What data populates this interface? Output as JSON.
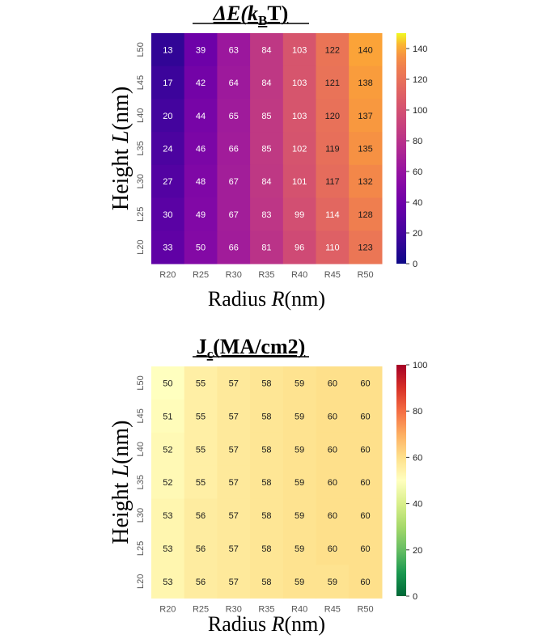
{
  "chart_data": [
    {
      "type": "heatmap",
      "id": "energy",
      "title_prefix": "ΔE(k",
      "title_sub": "B",
      "title_suffix": "T)",
      "xlabel_prefix": "Radius ",
      "xlabel_var": "R",
      "xlabel_unit": "(nm)",
      "ylabel_prefix": "Height ",
      "ylabel_var": "L",
      "ylabel_unit": "(nm)",
      "x_categories": [
        "R20",
        "R25",
        "R30",
        "R35",
        "R40",
        "R45",
        "R50"
      ],
      "y_categories": [
        "L50",
        "L45",
        "L40",
        "L35",
        "L30",
        "L25",
        "L20"
      ],
      "values": [
        [
          13,
          39,
          63,
          84,
          103,
          122,
          140
        ],
        [
          17,
          42,
          64,
          84,
          103,
          121,
          138
        ],
        [
          20,
          44,
          65,
          85,
          103,
          120,
          137
        ],
        [
          24,
          46,
          66,
          85,
          102,
          119,
          135
        ],
        [
          27,
          48,
          67,
          84,
          101,
          117,
          132
        ],
        [
          30,
          49,
          67,
          83,
          99,
          114,
          128
        ],
        [
          33,
          50,
          66,
          81,
          96,
          110,
          123
        ]
      ],
      "colormap": "plasma",
      "vmin": 0,
      "vmax": 150,
      "colorbar_ticks": [
        0,
        20,
        40,
        60,
        80,
        100,
        120,
        140
      ]
    },
    {
      "type": "heatmap",
      "id": "current",
      "title_prefix": "J",
      "title_sub": "c",
      "title_suffix": "(MA/cm2)",
      "xlabel_prefix": "Radius ",
      "xlabel_var": "R",
      "xlabel_unit": "(nm)",
      "ylabel_prefix": "Height ",
      "ylabel_var": "L",
      "ylabel_unit": "(nm)",
      "x_categories": [
        "R20",
        "R25",
        "R30",
        "R35",
        "R40",
        "R45",
        "R50"
      ],
      "y_categories": [
        "L50",
        "L45",
        "L40",
        "L35",
        "L30",
        "L25",
        "L20"
      ],
      "values": [
        [
          50,
          55,
          57,
          58,
          59,
          60,
          60
        ],
        [
          51,
          55,
          57,
          58,
          59,
          60,
          60
        ],
        [
          52,
          55,
          57,
          58,
          59,
          60,
          60
        ],
        [
          52,
          55,
          57,
          58,
          59,
          60,
          60
        ],
        [
          53,
          56,
          57,
          58,
          59,
          60,
          60
        ],
        [
          53,
          56,
          57,
          58,
          59,
          60,
          60
        ],
        [
          53,
          56,
          57,
          58,
          59,
          59,
          60
        ]
      ],
      "colormap": "RdYlGn_r",
      "vmin": 0,
      "vmax": 100,
      "colorbar_ticks": [
        0,
        20,
        40,
        60,
        80,
        100
      ]
    }
  ]
}
